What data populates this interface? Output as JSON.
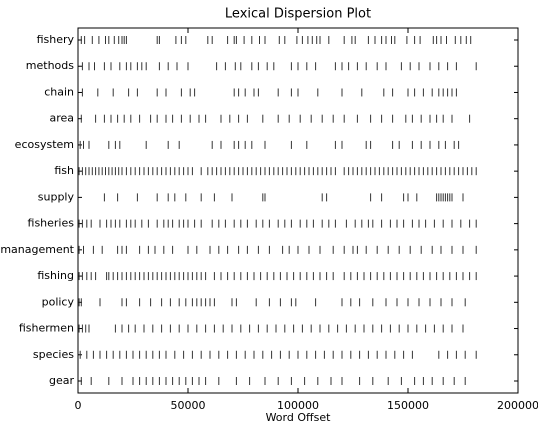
{
  "chart_data": {
    "type": "dispersion",
    "title": "Lexical Dispersion Plot",
    "x_label": "Word Offset",
    "color": "#333333",
    "xlim": [
      0,
      200000
    ],
    "xticks": [
      0,
      50000,
      100000,
      150000,
      200000
    ],
    "categories": [
      "fishery",
      "methods",
      "chain",
      "area",
      "ecosystem",
      "fish",
      "supply",
      "fisheries",
      "management",
      "fishing",
      "policy",
      "fishermen",
      "species",
      "gear"
    ],
    "offsets": [
      [
        1500,
        3000,
        6500,
        9500,
        12500,
        14000,
        16500,
        18500,
        20000,
        21000,
        22000,
        36000,
        37000,
        44500,
        47000,
        49000,
        59000,
        61000,
        68000,
        71000,
        72000,
        75500,
        79000,
        82500,
        85000,
        91500,
        94000,
        99500,
        102000,
        104500,
        106500,
        108500,
        110000,
        114000,
        121000,
        124500,
        126000,
        132000,
        135000,
        138000,
        140000,
        142500,
        144000,
        149500,
        153000,
        155500,
        161500,
        163000,
        165000,
        167500,
        171500,
        174000,
        176500,
        178500
      ],
      [
        2000,
        5000,
        7500,
        12000,
        15000,
        19000,
        22000,
        24000,
        27000,
        29000,
        31000,
        37000,
        41000,
        45000,
        50000,
        63000,
        67000,
        71500,
        74000,
        79000,
        82000,
        86000,
        89000,
        97000,
        100000,
        104000,
        108000,
        117000,
        120000,
        123000,
        127000,
        131000,
        136000,
        140000,
        147000,
        151000,
        155000,
        160000,
        164000,
        168000,
        172000,
        181000
      ],
      [
        2000,
        9000,
        16000,
        23000,
        27000,
        36000,
        40000,
        47000,
        51000,
        53000,
        71000,
        73000,
        76000,
        80000,
        82000,
        91000,
        97000,
        100000,
        109000,
        120000,
        129000,
        139000,
        143000,
        150000,
        153000,
        157000,
        161000,
        164000,
        166000,
        168000,
        170000,
        172000
      ],
      [
        1500,
        8000,
        12000,
        15000,
        18000,
        21000,
        24000,
        28000,
        33000,
        36000,
        40000,
        43000,
        47000,
        51000,
        55000,
        58000,
        65000,
        69000,
        73000,
        77000,
        84000,
        91000,
        96000,
        101000,
        106000,
        111000,
        116000,
        121000,
        127000,
        133000,
        138000,
        143000,
        149000,
        152000,
        156000,
        160000,
        163000,
        166000,
        170000,
        178000
      ],
      [
        1000,
        2500,
        5000,
        14000,
        17000,
        19000,
        31000,
        41000,
        46000,
        61000,
        65000,
        71000,
        73000,
        76000,
        79000,
        85000,
        97000,
        104000,
        117000,
        120000,
        131000,
        133000,
        143000,
        146000,
        152000,
        156000,
        160000,
        164000,
        167000,
        171000,
        173000
      ],
      [
        500,
        2000,
        3500,
        5000,
        6500,
        8000,
        9500,
        11000,
        12500,
        14000,
        15500,
        17000,
        18500,
        20000,
        22000,
        24000,
        26000,
        28000,
        30000,
        32000,
        34000,
        36000,
        38000,
        40000,
        42000,
        44000,
        46000,
        48000,
        50000,
        52000,
        56000,
        59000,
        61000,
        63000,
        65000,
        67000,
        69000,
        71000,
        73000,
        75000,
        77000,
        79000,
        81000,
        83000,
        85000,
        87000,
        89000,
        91000,
        93000,
        95000,
        97000,
        99000,
        101000,
        103000,
        105000,
        107000,
        109000,
        111000,
        113000,
        115000,
        117000,
        121000,
        123000,
        125000,
        127000,
        129000,
        131000,
        133000,
        135000,
        137000,
        139000,
        141000,
        143000,
        145000,
        147000,
        149000,
        151000,
        153000,
        155000,
        157000,
        159000,
        161000,
        163000,
        165000,
        167000,
        169000,
        171000,
        173000,
        175000,
        177000,
        179000,
        181000
      ],
      [
        12000,
        18000,
        27000,
        36000,
        41000,
        44000,
        49000,
        56000,
        62000,
        70000,
        84000,
        85000,
        111000,
        113000,
        133000,
        138000,
        148000,
        150000,
        154000,
        163000,
        164000,
        165000,
        166000,
        167000,
        168000,
        169000,
        170000,
        175000
      ],
      [
        500,
        2000,
        4000,
        6000,
        10000,
        13000,
        15000,
        17000,
        19000,
        22000,
        24000,
        26000,
        29000,
        32000,
        36000,
        39000,
        41000,
        43000,
        46000,
        48000,
        50000,
        53000,
        56000,
        61000,
        64000,
        67000,
        71000,
        74000,
        77000,
        81000,
        84000,
        87000,
        91000,
        94000,
        97000,
        101000,
        104000,
        107000,
        111000,
        114000,
        117000,
        122000,
        126000,
        129000,
        132000,
        134000,
        138000,
        142000,
        145000,
        148000,
        152000,
        155000,
        158000,
        162000,
        166000,
        170000,
        174000,
        178000,
        181000
      ],
      [
        500,
        2500,
        7000,
        11000,
        18000,
        20000,
        22000,
        28000,
        32000,
        35000,
        39000,
        43000,
        50000,
        54000,
        60000,
        64000,
        68000,
        73000,
        77000,
        82000,
        87000,
        93000,
        96000,
        100000,
        105000,
        110000,
        116000,
        121000,
        125000,
        127000,
        131000,
        136000,
        141000,
        146000,
        151000,
        156000,
        161000,
        165000,
        170000,
        175000,
        181000
      ],
      [
        500,
        2000,
        4000,
        6000,
        8000,
        13000,
        14000,
        16000,
        18000,
        20000,
        22000,
        24000,
        26000,
        28000,
        30000,
        32000,
        34000,
        36000,
        38000,
        40000,
        42000,
        44000,
        46000,
        48000,
        50000,
        52000,
        54000,
        56000,
        58000,
        62000,
        65000,
        68000,
        71000,
        74000,
        77000,
        80000,
        83000,
        86000,
        89000,
        92000,
        95000,
        98000,
        101000,
        104000,
        107000,
        110000,
        113000,
        116000,
        121000,
        124000,
        127000,
        130000,
        133000,
        136000,
        139000,
        142000,
        145000,
        148000,
        151000,
        154000,
        157000,
        160000,
        163000,
        166000,
        169000,
        172000,
        175000,
        178000,
        181000
      ],
      [
        500,
        1500,
        10000,
        20000,
        22000,
        28000,
        33000,
        38000,
        42000,
        46000,
        49000,
        52000,
        54000,
        56000,
        58000,
        60000,
        62000,
        70000,
        72000,
        81000,
        87000,
        92000,
        97000,
        99000,
        108000,
        120000,
        124000,
        128000,
        134000,
        140000,
        145000,
        150000,
        155000,
        160000,
        165000,
        170000,
        176000
      ],
      [
        500,
        2000,
        3500,
        5000,
        17000,
        20000,
        23000,
        26000,
        30000,
        34000,
        38000,
        42000,
        46000,
        50000,
        54000,
        58000,
        62000,
        66000,
        70000,
        74000,
        78000,
        82000,
        86000,
        90000,
        94000,
        98000,
        102000,
        106000,
        110000,
        114000,
        118000,
        122000,
        126000,
        130000,
        134000,
        138000,
        142000,
        146000,
        150000,
        154000,
        158000,
        162000,
        166000,
        170000,
        175000
      ],
      [
        1000,
        4000,
        7000,
        10000,
        13000,
        16000,
        19000,
        22000,
        25000,
        28000,
        31000,
        34000,
        37000,
        40000,
        44000,
        48000,
        52000,
        56000,
        60000,
        64000,
        68000,
        72000,
        76000,
        80000,
        84000,
        88000,
        92000,
        96000,
        100000,
        104000,
        108000,
        112000,
        116000,
        120000,
        124000,
        128000,
        132000,
        136000,
        140000,
        144000,
        148000,
        152000,
        164000,
        168000,
        172000,
        176000,
        181000
      ],
      [
        1500,
        6000,
        14000,
        20000,
        25000,
        28000,
        31000,
        34000,
        37000,
        40000,
        43000,
        46000,
        49000,
        52000,
        55000,
        58000,
        64000,
        72000,
        78000,
        85000,
        91000,
        97000,
        103000,
        109000,
        115000,
        120000,
        128000,
        134000,
        141000,
        147000,
        153000,
        157000,
        161000,
        166000,
        171000,
        176000
      ]
    ]
  }
}
